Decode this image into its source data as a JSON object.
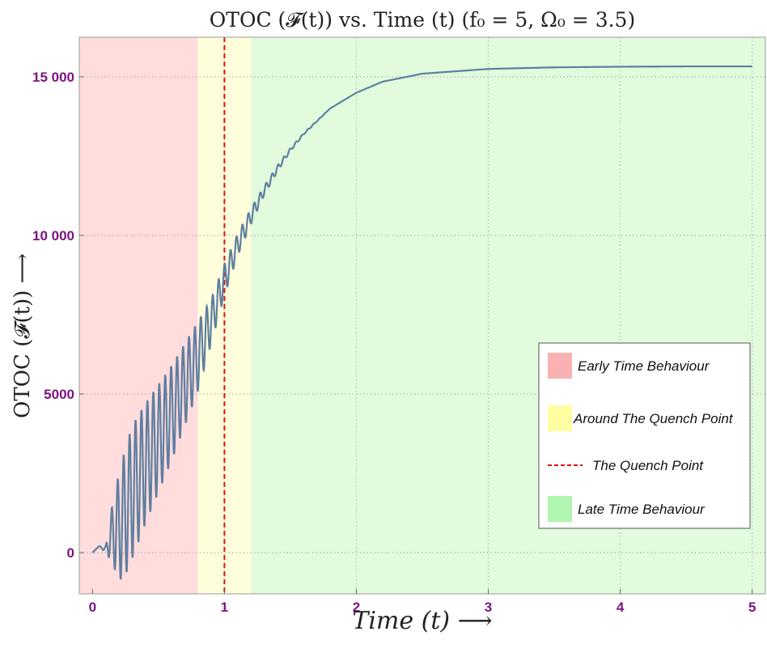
{
  "chart_data": {
    "type": "line",
    "title": "OTOC (𝓕(t)) vs. Time (t) (f₀ = 5, Ω₀ = 3.5)",
    "xlabel": "Time (t)  ⟶",
    "ylabel": "OTOC (𝓕(t))  ⟶",
    "xlim": [
      -0.1,
      5.1
    ],
    "ylim": [
      -1300,
      16250
    ],
    "xticks": [
      0,
      1,
      2,
      3,
      4,
      5
    ],
    "yticks": [
      0,
      5000,
      10000,
      15000
    ],
    "xtick_labels": [
      "0",
      "1",
      "2",
      "3",
      "4",
      "5"
    ],
    "ytick_labels": [
      "0",
      "5000",
      "10 000",
      "15 000"
    ],
    "grid": "dotted horizontal and vertical gridlines",
    "quench_point": 1,
    "regions": [
      {
        "label": "Early Time Behaviour",
        "x_range": [
          -0.1,
          0.8
        ],
        "color": "#ffdddd"
      },
      {
        "label": "Around The Quench Point",
        "x_range": [
          0.8,
          1.2
        ],
        "color": "#ffffdc"
      },
      {
        "label": "Late Time Behaviour",
        "x_range": [
          1.2,
          5.1
        ],
        "color": "#e2fbdd"
      }
    ],
    "legend_placement": "center-right",
    "legend": [
      {
        "label": "Early Time Behaviour",
        "swatch": "#f9b1b1",
        "kind": "box"
      },
      {
        "label": "Around The Quench Point",
        "swatch": "#fdfda1",
        "kind": "box"
      },
      {
        "label": "The Quench Point",
        "swatch": "#e01010",
        "kind": "dashed-line"
      },
      {
        "label": "Late Time Behaviour",
        "swatch": "#b0f5b0",
        "kind": "box"
      }
    ],
    "series": [
      {
        "color": "#5f7fa0",
        "x": [
          0,
          0.05,
          0.1,
          0.15,
          0.2,
          0.25,
          0.3,
          0.4,
          0.5,
          0.6,
          0.7,
          0.8,
          0.9,
          1.0,
          1.1,
          1.2,
          1.3,
          1.4,
          1.5,
          1.6,
          1.8,
          2.0,
          2.2,
          2.5,
          3.0,
          3.5,
          4.0,
          4.5,
          5.0
        ],
        "values": [
          0,
          200,
          100,
          600,
          800,
          1300,
          1900,
          2800,
          3600,
          4400,
          5300,
          6200,
          7300,
          8600,
          9700,
          10600,
          11400,
          12100,
          12700,
          13200,
          14000,
          14500,
          14850,
          15100,
          15250,
          15300,
          15320,
          15330,
          15330
        ],
        "oscillation_amplitude": [
          0,
          0,
          100,
          900,
          1700,
          2000,
          2100,
          1900,
          1700,
          1500,
          1300,
          1100,
          700,
          500,
          350,
          250,
          150,
          100,
          50,
          25,
          0,
          0,
          0,
          0,
          0,
          0,
          0,
          0,
          0
        ],
        "oscillation_period": 0.045
      }
    ],
    "colors": {
      "curve": "#5f7fa0",
      "quench_line": "#e01010",
      "tick_labels": "#7a1580",
      "frame": "#9a9a9a"
    }
  }
}
